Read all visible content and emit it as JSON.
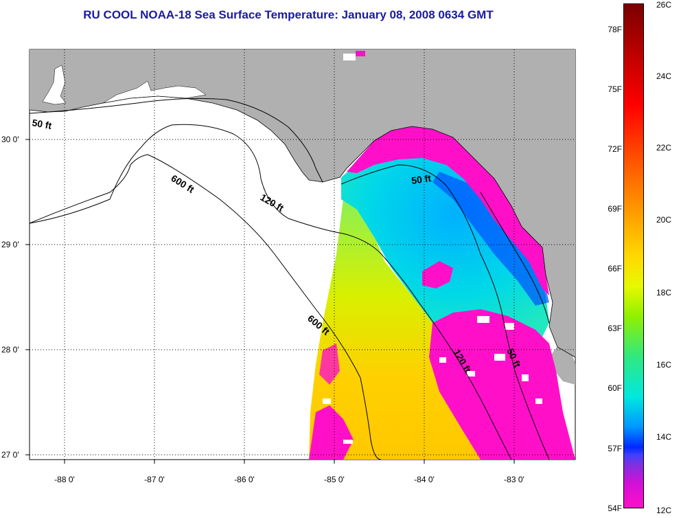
{
  "title": "RU COOL  NOAA-18  Sea Surface Temperature:  January 08, 2008 0634 GMT",
  "lat_labels": [
    "30 0'",
    "29 0'",
    "28 0'",
    "27 0'"
  ],
  "lon_labels": [
    "-88 0'",
    "-87 0'",
    "-86 0'",
    "-85 0'",
    "-84 0'",
    "-83 0'"
  ],
  "depth_labels": [
    "50 ft",
    "600 ft",
    "120 ft",
    "50 ft",
    "600 ft",
    "120 ft",
    "50 ft"
  ],
  "colorbar": {
    "fahrenheit": [
      "78F",
      "75F",
      "72F",
      "69F",
      "66F",
      "63F",
      "60F",
      "57F",
      "54F"
    ],
    "celsius": [
      "26C",
      "24C",
      "22C",
      "20C",
      "18C",
      "16C",
      "14C",
      "12C"
    ]
  },
  "colors": {
    "land": "#b0b0b0",
    "water_nodata": "#ffffff",
    "title": "#1a1aa0"
  }
}
